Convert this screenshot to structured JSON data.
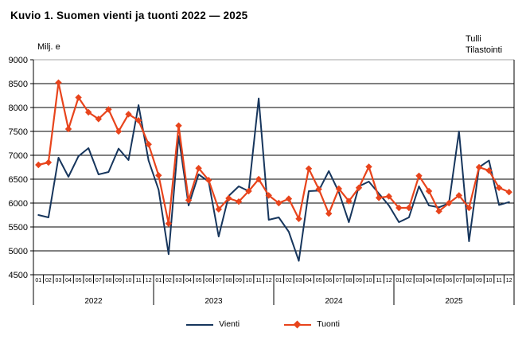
{
  "page": {
    "title": "Kuvio 1. Suomen vienti ja tuonti 2022 — 2025",
    "source_line1": "Tulli",
    "source_line2": "Tilastointi",
    "unit_label": "Milj. e"
  },
  "legend": {
    "vienti": "Vienti",
    "tuonti": "Tuonti"
  },
  "colors": {
    "vienti": "#17365D",
    "tuonti": "#E8441C",
    "grid": "#000000",
    "top_border": "#A6A6A6"
  },
  "chart_data": {
    "type": "line",
    "title": "Kuvio 1. Suomen vienti ja tuonti 2022 — 2025",
    "xlabel": "",
    "ylabel": "Milj. e",
    "ylim": [
      4500,
      9000
    ],
    "ytick_step": 500,
    "grid": true,
    "legend_position": "bottom",
    "years": [
      "2022",
      "2023",
      "2024",
      "2025"
    ],
    "month_labels": [
      "01",
      "02",
      "03",
      "04",
      "05",
      "06",
      "07",
      "08",
      "09",
      "10",
      "11",
      "12"
    ],
    "series": [
      {
        "name": "Vienti",
        "color": "#17365D",
        "marker": "none",
        "width": 2,
        "values": [
          5750,
          5700,
          6950,
          6550,
          6980,
          7150,
          6600,
          6650,
          7140,
          6900,
          8050,
          6890,
          6280,
          4930,
          7400,
          5950,
          6600,
          6450,
          5300,
          6150,
          6350,
          6250,
          8190,
          5650,
          5700,
          5400,
          4790,
          6250,
          6260,
          6670,
          6230,
          5600,
          6350,
          6450,
          6200,
          5950,
          5600,
          5700,
          6350,
          5950,
          5910,
          6000,
          7500,
          5200,
          6750,
          6890,
          5960,
          6020
        ]
      },
      {
        "name": "Tuonti",
        "color": "#E8441C",
        "marker": "diamond",
        "width": 2.2,
        "values": [
          6800,
          6850,
          8520,
          7550,
          8210,
          7900,
          7760,
          7960,
          7500,
          7860,
          7730,
          7230,
          6580,
          5570,
          7620,
          6060,
          6730,
          6480,
          5870,
          6100,
          6030,
          6250,
          6500,
          6160,
          6000,
          6090,
          5670,
          6720,
          6290,
          5780,
          6300,
          6040,
          6320,
          6760,
          6110,
          6140,
          5900,
          5900,
          6570,
          6250,
          5830,
          6000,
          6160,
          5900,
          6750,
          6680,
          6320,
          6230
        ]
      }
    ]
  }
}
